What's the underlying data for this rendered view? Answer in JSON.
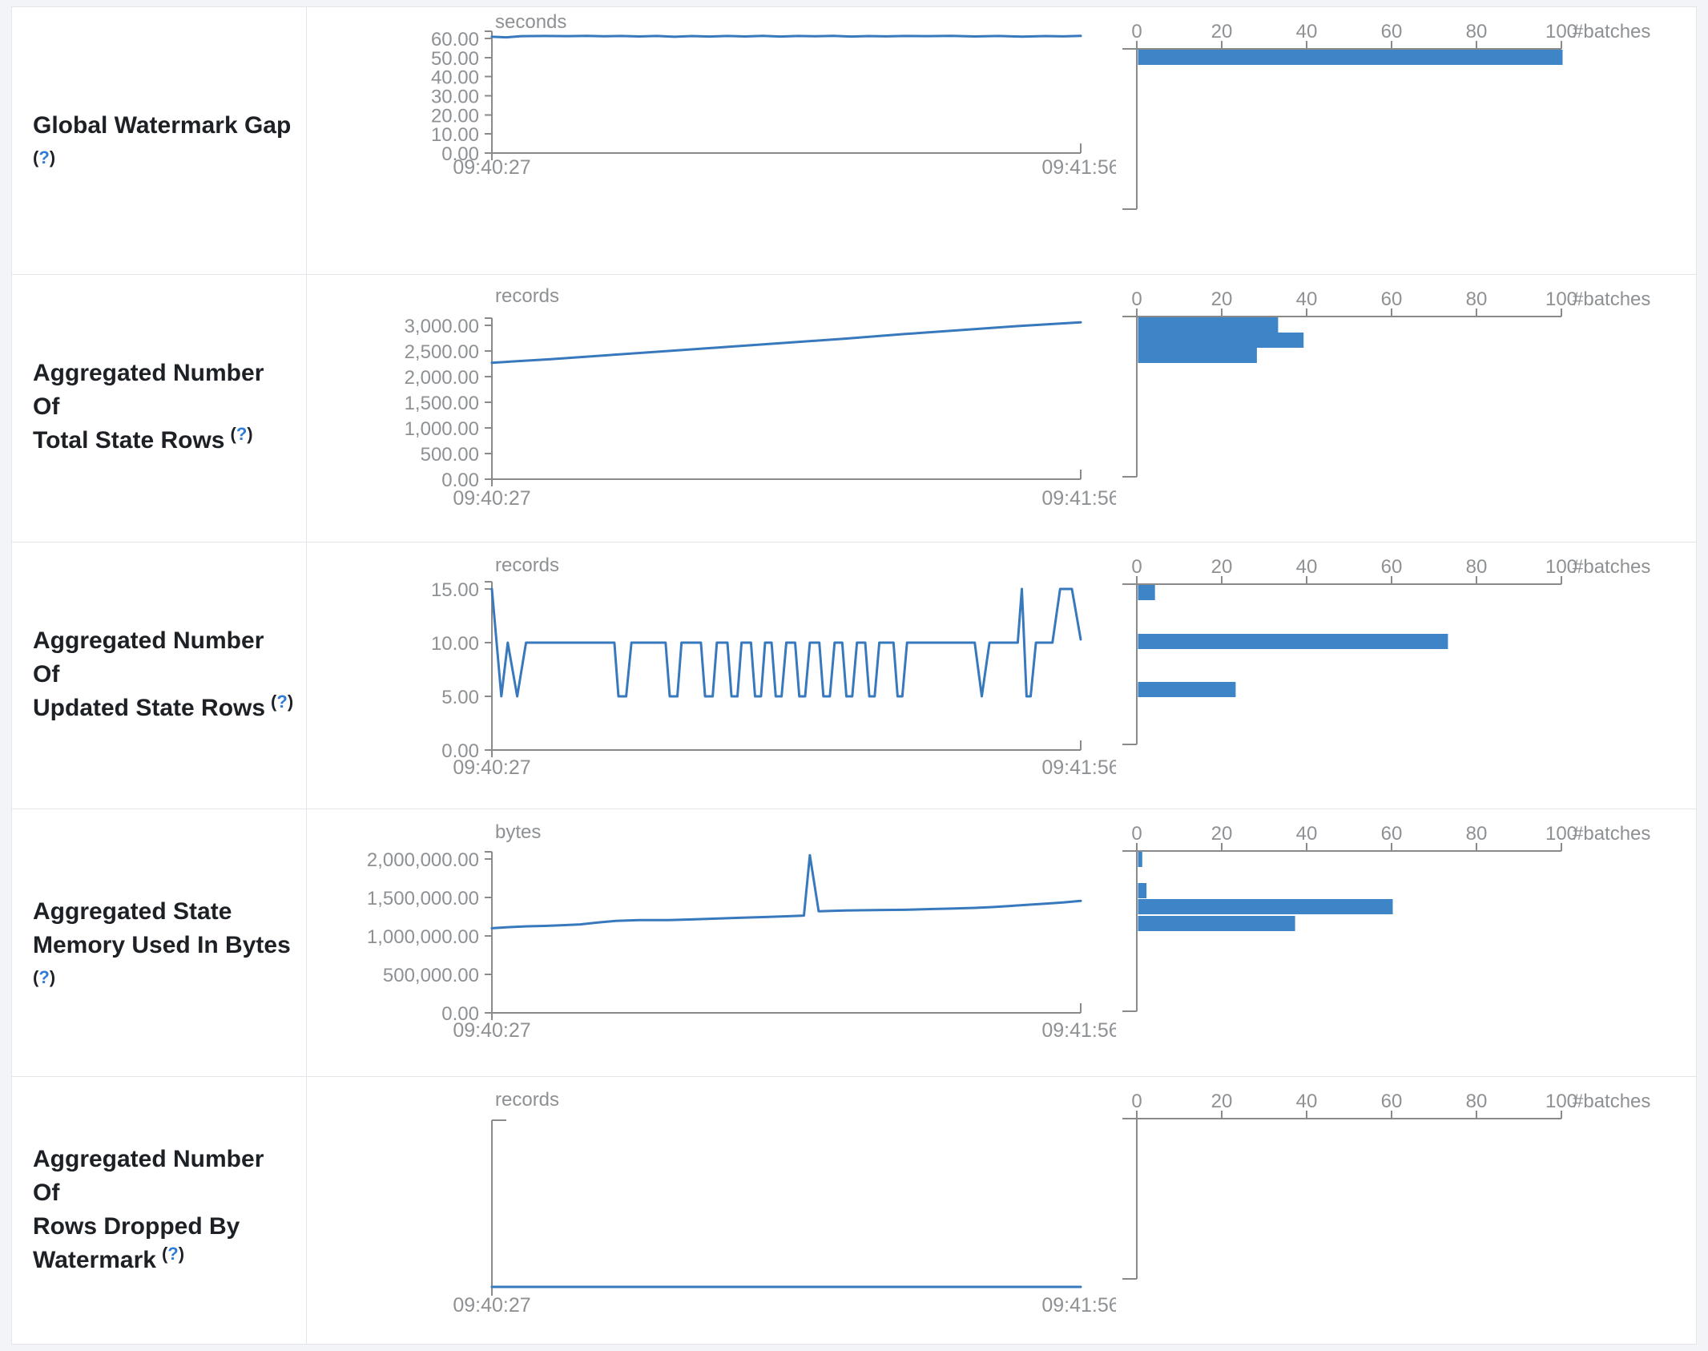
{
  "theme": {
    "accent_bar": "#3d85c6",
    "accent_line": "#3878bc",
    "axis_color": "#8a8a8a",
    "tick_text_color": "#8e9194",
    "label_text_color": "#1d2126",
    "help_mark_color": "#2e7cd6",
    "border_color": "#e2e5e9",
    "page_background": "#f2f4f7",
    "table_background": "#ffffff"
  },
  "x_axis": {
    "start": "09:40:27",
    "end": "09:41:56"
  },
  "histogram_axis": {
    "tick_labels": [
      "0",
      "20",
      "40",
      "60",
      "80",
      "100"
    ],
    "tick_values": [
      0,
      20,
      40,
      60,
      80,
      100
    ],
    "max": 100,
    "unit_label": "#batches"
  },
  "rows": [
    {
      "name": "global-watermark-gap",
      "label_lines": [
        "Global Watermark Gap"
      ],
      "help": {
        "open": "(",
        "mark": "?",
        "close": ")"
      },
      "help_inline": false,
      "timeline": {
        "type": "line",
        "unit": "seconds",
        "y_tick_labels": [
          "60.00",
          "50.00",
          "40.00",
          "30.00",
          "20.00",
          "10.00",
          "0.00"
        ],
        "y_tick_values": [
          60,
          50,
          40,
          30,
          20,
          10,
          0
        ],
        "y_max_tick": 60,
        "series": [
          [
            0,
            60.9
          ],
          [
            0.025,
            60.6
          ],
          [
            0.05,
            61.2
          ],
          [
            0.09,
            61.3
          ],
          [
            0.13,
            61.2
          ],
          [
            0.16,
            61.35
          ],
          [
            0.19,
            61.15
          ],
          [
            0.22,
            61.3
          ],
          [
            0.25,
            61.05
          ],
          [
            0.28,
            61.3
          ],
          [
            0.31,
            60.9
          ],
          [
            0.34,
            61.25
          ],
          [
            0.37,
            61.0
          ],
          [
            0.4,
            61.3
          ],
          [
            0.43,
            61.05
          ],
          [
            0.46,
            61.35
          ],
          [
            0.49,
            61.0
          ],
          [
            0.52,
            61.3
          ],
          [
            0.55,
            61.15
          ],
          [
            0.58,
            61.35
          ],
          [
            0.61,
            61.0
          ],
          [
            0.64,
            61.25
          ],
          [
            0.67,
            61.1
          ],
          [
            0.7,
            61.3
          ],
          [
            0.74,
            61.2
          ],
          [
            0.78,
            61.35
          ],
          [
            0.82,
            61.05
          ],
          [
            0.86,
            61.3
          ],
          [
            0.9,
            60.95
          ],
          [
            0.94,
            61.25
          ],
          [
            0.97,
            61.1
          ],
          [
            1,
            61.35
          ]
        ]
      },
      "histogram": {
        "type": "bar",
        "bars": [
          {
            "count": 100,
            "value_pos": 0.0
          }
        ]
      }
    },
    {
      "name": "aggregated-number-of-total-state-rows",
      "label_lines": [
        "Aggregated Number Of",
        "Total State Rows"
      ],
      "help": {
        "open": "(",
        "mark": "?",
        "close": ")"
      },
      "help_inline": true,
      "timeline": {
        "type": "line",
        "unit": "records",
        "y_tick_labels": [
          "3,000.00",
          "2,500.00",
          "2,000.00",
          "1,500.00",
          "1,000.00",
          "500.00",
          "0.00"
        ],
        "y_tick_values": [
          3000,
          2500,
          2000,
          1500,
          1000,
          500,
          0
        ],
        "y_max_tick": 3000,
        "series": [
          [
            0,
            2270
          ],
          [
            0.1,
            2340
          ],
          [
            0.2,
            2420
          ],
          [
            0.3,
            2500
          ],
          [
            0.4,
            2580
          ],
          [
            0.5,
            2660
          ],
          [
            0.6,
            2740
          ],
          [
            0.7,
            2830
          ],
          [
            0.8,
            2910
          ],
          [
            0.9,
            2990
          ],
          [
            1,
            3060
          ]
        ]
      },
      "histogram": {
        "type": "bar",
        "bars": [
          {
            "count": 33,
            "value_pos": 0.0
          },
          {
            "count": 39,
            "value_pos": 0.095
          },
          {
            "count": 28,
            "value_pos": 0.19
          }
        ]
      }
    },
    {
      "name": "aggregated-number-of-updated-state-rows",
      "label_lines": [
        "Aggregated Number Of",
        "Updated State Rows"
      ],
      "help": {
        "open": "(",
        "mark": "?",
        "close": ")"
      },
      "help_inline": true,
      "timeline": {
        "type": "line",
        "unit": "records",
        "y_tick_labels": [
          "15.00",
          "10.00",
          "5.00",
          "0.00"
        ],
        "y_tick_values": [
          15,
          10,
          5,
          0
        ],
        "y_max_tick": 15,
        "series": [
          [
            0,
            15
          ],
          [
            0.016,
            5
          ],
          [
            0.027,
            10
          ],
          [
            0.043,
            5
          ],
          [
            0.058,
            10
          ],
          [
            0.208,
            10
          ],
          [
            0.215,
            5
          ],
          [
            0.228,
            5
          ],
          [
            0.237,
            10
          ],
          [
            0.295,
            10
          ],
          [
            0.302,
            5
          ],
          [
            0.315,
            5
          ],
          [
            0.322,
            10
          ],
          [
            0.355,
            10
          ],
          [
            0.362,
            5
          ],
          [
            0.375,
            5
          ],
          [
            0.382,
            10
          ],
          [
            0.4,
            10
          ],
          [
            0.407,
            5
          ],
          [
            0.417,
            5
          ],
          [
            0.424,
            10
          ],
          [
            0.44,
            10
          ],
          [
            0.447,
            5
          ],
          [
            0.457,
            5
          ],
          [
            0.464,
            10
          ],
          [
            0.475,
            10
          ],
          [
            0.482,
            5
          ],
          [
            0.492,
            5
          ],
          [
            0.5,
            10
          ],
          [
            0.515,
            10
          ],
          [
            0.522,
            5
          ],
          [
            0.532,
            5
          ],
          [
            0.54,
            10
          ],
          [
            0.556,
            10
          ],
          [
            0.563,
            5
          ],
          [
            0.574,
            5
          ],
          [
            0.582,
            10
          ],
          [
            0.595,
            10
          ],
          [
            0.602,
            5
          ],
          [
            0.612,
            5
          ],
          [
            0.62,
            10
          ],
          [
            0.634,
            10
          ],
          [
            0.641,
            5
          ],
          [
            0.65,
            5
          ],
          [
            0.658,
            10
          ],
          [
            0.682,
            10
          ],
          [
            0.689,
            5
          ],
          [
            0.697,
            5
          ],
          [
            0.705,
            10
          ],
          [
            0.82,
            10
          ],
          [
            0.832,
            5
          ],
          [
            0.845,
            10
          ],
          [
            0.893,
            10
          ],
          [
            0.9,
            15
          ],
          [
            0.908,
            5
          ],
          [
            0.915,
            5
          ],
          [
            0.924,
            10
          ],
          [
            0.952,
            10
          ],
          [
            0.965,
            15
          ],
          [
            0.985,
            15
          ],
          [
            1,
            10.3
          ]
        ]
      },
      "histogram": {
        "type": "bar",
        "bars": [
          {
            "count": 4,
            "value_pos": 0.0
          },
          {
            "count": 73,
            "value_pos": 0.305
          },
          {
            "count": 23,
            "value_pos": 0.605
          }
        ]
      }
    },
    {
      "name": "aggregated-state-memory-used-in-bytes",
      "label_lines": [
        "Aggregated State",
        "Memory Used In Bytes"
      ],
      "help": {
        "open": "(",
        "mark": "?",
        "close": ")"
      },
      "help_inline": false,
      "timeline": {
        "type": "line",
        "unit": "bytes",
        "y_tick_labels": [
          "2,000,000.00",
          "1,500,000.00",
          "1,000,000.00",
          "500,000.00",
          "0.00"
        ],
        "y_tick_values": [
          2000000,
          1500000,
          1000000,
          500000,
          0
        ],
        "y_max_tick": 2000000,
        "series": [
          [
            0,
            1100000
          ],
          [
            0.03,
            1115000
          ],
          [
            0.06,
            1125000
          ],
          [
            0.09,
            1130000
          ],
          [
            0.12,
            1140000
          ],
          [
            0.15,
            1150000
          ],
          [
            0.18,
            1175000
          ],
          [
            0.21,
            1195000
          ],
          [
            0.25,
            1205000
          ],
          [
            0.3,
            1205000
          ],
          [
            0.34,
            1215000
          ],
          [
            0.38,
            1225000
          ],
          [
            0.42,
            1235000
          ],
          [
            0.46,
            1245000
          ],
          [
            0.5,
            1255000
          ],
          [
            0.53,
            1265000
          ],
          [
            0.54,
            2050000
          ],
          [
            0.555,
            1320000
          ],
          [
            0.6,
            1330000
          ],
          [
            0.65,
            1335000
          ],
          [
            0.7,
            1340000
          ],
          [
            0.75,
            1350000
          ],
          [
            0.78,
            1355000
          ],
          [
            0.82,
            1365000
          ],
          [
            0.85,
            1375000
          ],
          [
            0.88,
            1390000
          ],
          [
            0.91,
            1405000
          ],
          [
            0.94,
            1420000
          ],
          [
            0.97,
            1435000
          ],
          [
            1,
            1455000
          ]
        ]
      },
      "histogram": {
        "type": "bar",
        "bars": [
          {
            "count": 1,
            "value_pos": 0.0
          },
          {
            "count": 2,
            "value_pos": 0.195
          },
          {
            "count": 60,
            "value_pos": 0.295
          },
          {
            "count": 37,
            "value_pos": 0.4
          }
        ]
      }
    },
    {
      "name": "aggregated-number-of-rows-dropped-by-watermark",
      "label_lines": [
        "Aggregated Number Of",
        "Rows Dropped By",
        "Watermark"
      ],
      "help": {
        "open": "(",
        "mark": "?",
        "close": ")"
      },
      "help_inline": true,
      "timeline": {
        "type": "line",
        "unit": "records",
        "y_tick_labels": [],
        "y_tick_values": [],
        "y_max_tick": 0,
        "series": [
          [
            0,
            0
          ],
          [
            1,
            0
          ]
        ]
      },
      "histogram": {
        "type": "bar",
        "bars": []
      }
    }
  ]
}
